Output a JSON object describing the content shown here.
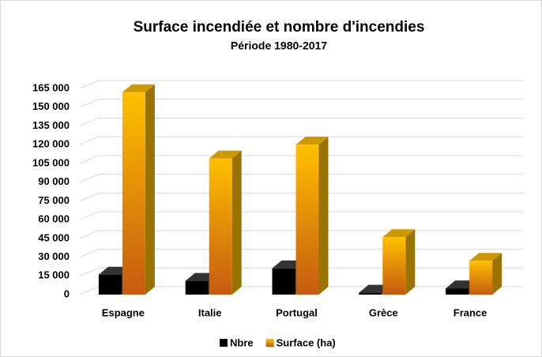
{
  "chart_data": {
    "type": "bar3d",
    "title": "Surface incendiée et nombre d'incendies",
    "subtitle": "Période 1980-2017",
    "categories": [
      "Espagne",
      "Italie",
      "Portugal",
      "Grèce",
      "France"
    ],
    "series": [
      {
        "name": "Nbre",
        "color": "#000000",
        "values": [
          16000,
          11000,
          21000,
          1500,
          5000
        ]
      },
      {
        "name": "Surface (ha)",
        "color": "#ffc000",
        "values": [
          162000,
          109000,
          120000,
          46000,
          27000
        ]
      }
    ],
    "ylim": [
      0,
      165000
    ],
    "yticks": [
      0,
      {
        "value": 15000,
        "label": "15 000"
      },
      {
        "value": 30000,
        "label": "30 000"
      },
      {
        "value": 45000,
        "label": "45 000"
      },
      {
        "value": 60000,
        "label": "60 000"
      },
      {
        "value": 75000,
        "label": "75 000"
      },
      {
        "value": 90000,
        "label": "90 000"
      },
      {
        "value": 105000,
        "label": "105 000"
      },
      {
        "value": 120000,
        "label": "120 000"
      },
      {
        "value": 135000,
        "label": "135 000"
      },
      {
        "value": 150000,
        "label": "150 000"
      },
      {
        "value": 165000,
        "label": "165 000"
      }
    ],
    "grid": true
  }
}
